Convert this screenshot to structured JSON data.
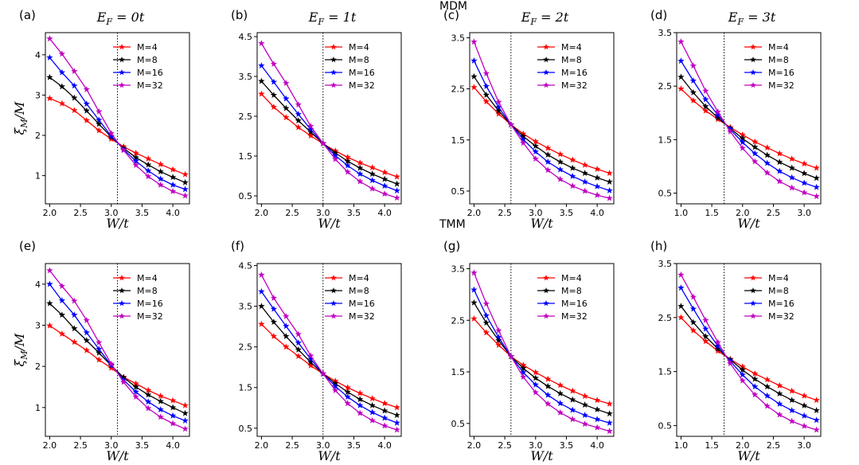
{
  "figure": {
    "section_labels": [
      "MDM",
      "TMM"
    ],
    "column_titles": [
      "E_F = 0t",
      "E_F = 1t",
      "E_F = 2t",
      "E_F = 3t"
    ],
    "xlabel": "W/t",
    "ylabel": "ξ_M/M",
    "legend_entries": [
      "M=4",
      "M=8",
      "M=16",
      "M=32"
    ],
    "colors": {
      "M4": "#ff0000",
      "M8": "#000000",
      "M16": "#0000ff",
      "M32": "#c000c0",
      "critical_line": "#000000"
    }
  },
  "chart_data": [
    {
      "panel": "(a)",
      "type": "line",
      "title": "E_F = 0t",
      "xlabel": "W/t",
      "ylabel": "ξ_M/M",
      "xlim": [
        1.93,
        4.27
      ],
      "ylim": [
        0.3,
        4.55
      ],
      "xticks": [
        "2.0",
        "2.5",
        "3.0",
        "3.5",
        "4.0"
      ],
      "yticks": [
        "1",
        "2",
        "3",
        "4"
      ],
      "xtick_values": [
        2.0,
        2.5,
        3.0,
        3.5,
        4.0
      ],
      "ytick_values": [
        1,
        2,
        3,
        4
      ],
      "critical_W": 3.1,
      "x": [
        2.0,
        2.2,
        2.4,
        2.6,
        2.8,
        3.0,
        3.2,
        3.4,
        3.6,
        3.8,
        4.0,
        4.2
      ],
      "series": [
        {
          "name": "M=4",
          "values": [
            2.92,
            2.79,
            2.62,
            2.37,
            2.12,
            1.91,
            1.72,
            1.56,
            1.42,
            1.28,
            1.15,
            1.03
          ]
        },
        {
          "name": "M=8",
          "values": [
            3.44,
            3.21,
            2.93,
            2.61,
            2.28,
            1.96,
            1.68,
            1.45,
            1.27,
            1.1,
            0.96,
            0.83
          ]
        },
        {
          "name": "M=16",
          "values": [
            3.93,
            3.56,
            3.23,
            2.78,
            2.38,
            1.98,
            1.65,
            1.36,
            1.12,
            0.92,
            0.77,
            0.66
          ]
        },
        {
          "name": "M=32",
          "values": [
            4.4,
            4.02,
            3.59,
            3.14,
            2.59,
            2.05,
            1.63,
            1.26,
            0.98,
            0.77,
            0.61,
            0.5
          ]
        }
      ]
    },
    {
      "panel": "(b)",
      "type": "line",
      "title": "E_F = 1t",
      "xlabel": "W/t",
      "ylabel": "",
      "xlim": [
        1.93,
        4.27
      ],
      "ylim": [
        0.3,
        4.6
      ],
      "xticks": [
        "2.0",
        "2.5",
        "3.0",
        "3.5",
        "4.0"
      ],
      "yticks": [
        "0.5",
        "1.5",
        "2.5",
        "3.5",
        "4.5"
      ],
      "xtick_values": [
        2.0,
        2.5,
        3.0,
        3.5,
        4.0
      ],
      "ytick_values": [
        0.5,
        1.5,
        2.5,
        3.5,
        4.5
      ],
      "critical_W": 3.0,
      "x": [
        2.0,
        2.2,
        2.4,
        2.6,
        2.8,
        3.0,
        3.2,
        3.4,
        3.6,
        3.8,
        4.0,
        4.2
      ],
      "series": [
        {
          "name": "M=4",
          "values": [
            3.06,
            2.73,
            2.47,
            2.22,
            2.01,
            1.81,
            1.63,
            1.47,
            1.33,
            1.21,
            1.09,
            0.98
          ]
        },
        {
          "name": "M=8",
          "values": [
            3.38,
            3.03,
            2.7,
            2.39,
            2.1,
            1.82,
            1.58,
            1.37,
            1.2,
            1.05,
            0.92,
            0.8
          ]
        },
        {
          "name": "M=16",
          "values": [
            3.77,
            3.36,
            2.94,
            2.55,
            2.17,
            1.82,
            1.51,
            1.26,
            1.05,
            0.89,
            0.75,
            0.63
          ]
        },
        {
          "name": "M=32",
          "values": [
            4.33,
            3.81,
            3.33,
            2.79,
            2.25,
            1.82,
            1.42,
            1.1,
            0.86,
            0.68,
            0.55,
            0.45
          ]
        }
      ]
    },
    {
      "panel": "(c)",
      "type": "line",
      "title": "E_F = 2t",
      "xlabel": "W/t",
      "ylabel": "",
      "xlim": [
        1.93,
        4.27
      ],
      "ylim": [
        0.25,
        3.6
      ],
      "xticks": [
        "2.0",
        "2.5",
        "3.0",
        "3.5",
        "4.0"
      ],
      "yticks": [
        "0.5",
        "1.5",
        "2.5",
        "3.5"
      ],
      "xtick_values": [
        2.0,
        2.5,
        3.0,
        3.5,
        4.0
      ],
      "ytick_values": [
        0.5,
        1.5,
        2.5,
        3.5
      ],
      "critical_W": 2.6,
      "x": [
        2.0,
        2.2,
        2.4,
        2.6,
        2.8,
        3.0,
        3.2,
        3.4,
        3.6,
        3.8,
        4.0,
        4.2
      ],
      "series": [
        {
          "name": "M=4",
          "values": [
            2.53,
            2.25,
            2.01,
            1.8,
            1.62,
            1.47,
            1.34,
            1.22,
            1.11,
            1.01,
            0.93,
            0.85
          ]
        },
        {
          "name": "M=8",
          "values": [
            2.74,
            2.38,
            2.07,
            1.8,
            1.57,
            1.38,
            1.21,
            1.07,
            0.95,
            0.85,
            0.76,
            0.68
          ]
        },
        {
          "name": "M=16",
          "values": [
            3.05,
            2.55,
            2.14,
            1.8,
            1.51,
            1.27,
            1.07,
            0.92,
            0.79,
            0.68,
            0.59,
            0.51
          ]
        },
        {
          "name": "M=32",
          "values": [
            3.42,
            2.8,
            2.24,
            1.8,
            1.44,
            1.13,
            0.91,
            0.73,
            0.6,
            0.5,
            0.42,
            0.36
          ]
        }
      ]
    },
    {
      "panel": "(d)",
      "type": "line",
      "title": "E_F = 3t",
      "xlabel": "W/t",
      "ylabel": "",
      "xlim": [
        0.93,
        3.27
      ],
      "ylim": [
        0.3,
        3.5
      ],
      "xticks": [
        "1.0",
        "1.5",
        "2.0",
        "2.5",
        "3.0"
      ],
      "yticks": [
        "0.5",
        "1.5",
        "2.5",
        "3.5"
      ],
      "xtick_values": [
        1.0,
        1.5,
        2.0,
        2.5,
        3.0
      ],
      "ytick_values": [
        0.5,
        1.5,
        2.5,
        3.5
      ],
      "critical_W": 1.7,
      "x": [
        1.0,
        1.2,
        1.4,
        1.6,
        1.8,
        2.0,
        2.2,
        2.4,
        2.6,
        2.8,
        3.0,
        3.2
      ],
      "series": [
        {
          "name": "M=4",
          "values": [
            2.45,
            2.23,
            2.04,
            1.88,
            1.73,
            1.59,
            1.46,
            1.35,
            1.24,
            1.14,
            1.05,
            0.97
          ]
        },
        {
          "name": "M=8",
          "values": [
            2.67,
            2.38,
            2.12,
            1.91,
            1.71,
            1.52,
            1.36,
            1.21,
            1.08,
            0.97,
            0.87,
            0.78
          ]
        },
        {
          "name": "M=16",
          "values": [
            2.97,
            2.6,
            2.25,
            1.96,
            1.69,
            1.45,
            1.24,
            1.06,
            0.91,
            0.79,
            0.69,
            0.61
          ]
        },
        {
          "name": "M=32",
          "values": [
            3.33,
            2.88,
            2.41,
            2.02,
            1.65,
            1.34,
            1.09,
            0.88,
            0.72,
            0.6,
            0.51,
            0.44
          ]
        }
      ]
    },
    {
      "panel": "(e)",
      "type": "line",
      "title": "",
      "xlabel": "W/t",
      "ylabel": "ξ_M/M",
      "xlim": [
        1.93,
        4.27
      ],
      "ylim": [
        0.3,
        4.5
      ],
      "xticks": [
        "2.0",
        "2.5",
        "3.0",
        "3.5",
        "4.0"
      ],
      "yticks": [
        "1",
        "2",
        "3",
        "4"
      ],
      "xtick_values": [
        2.0,
        2.5,
        3.0,
        3.5,
        4.0
      ],
      "ytick_values": [
        1,
        2,
        3,
        4
      ],
      "critical_W": 3.1,
      "x": [
        2.0,
        2.2,
        2.4,
        2.6,
        2.8,
        3.0,
        3.2,
        3.4,
        3.6,
        3.8,
        4.0,
        4.2
      ],
      "series": [
        {
          "name": "M=4",
          "values": [
            2.99,
            2.79,
            2.59,
            2.39,
            2.16,
            1.96,
            1.74,
            1.58,
            1.42,
            1.28,
            1.17,
            1.05
          ]
        },
        {
          "name": "M=8",
          "values": [
            3.53,
            3.25,
            2.92,
            2.63,
            2.33,
            2.02,
            1.73,
            1.5,
            1.31,
            1.15,
            1.0,
            0.86
          ]
        },
        {
          "name": "M=16",
          "values": [
            4.0,
            3.6,
            3.25,
            2.82,
            2.42,
            2.03,
            1.67,
            1.38,
            1.14,
            0.95,
            0.8,
            0.68
          ]
        },
        {
          "name": "M=32",
          "values": [
            4.33,
            3.95,
            3.59,
            3.12,
            2.58,
            2.06,
            1.62,
            1.26,
            0.98,
            0.77,
            0.61,
            0.48
          ]
        }
      ]
    },
    {
      "panel": "(f)",
      "type": "line",
      "title": "",
      "xlabel": "W/t",
      "ylabel": "",
      "xlim": [
        1.93,
        4.27
      ],
      "ylim": [
        0.3,
        4.55
      ],
      "xticks": [
        "2.0",
        "2.5",
        "3.0",
        "3.5",
        "4.0"
      ],
      "yticks": [
        "0.5",
        "1.5",
        "2.5",
        "3.5",
        "4.5"
      ],
      "xtick_values": [
        2.0,
        2.5,
        3.0,
        3.5,
        4.0
      ],
      "ytick_values": [
        0.5,
        1.5,
        2.5,
        3.5,
        4.5
      ],
      "critical_W": 3.0,
      "x": [
        2.0,
        2.2,
        2.4,
        2.6,
        2.8,
        3.0,
        3.2,
        3.4,
        3.6,
        3.8,
        4.0,
        4.2
      ],
      "series": [
        {
          "name": "M=4",
          "values": [
            3.06,
            2.76,
            2.5,
            2.27,
            2.04,
            1.84,
            1.66,
            1.5,
            1.36,
            1.23,
            1.11,
            1.01
          ]
        },
        {
          "name": "M=8",
          "values": [
            3.5,
            3.11,
            2.76,
            2.43,
            2.12,
            1.84,
            1.6,
            1.39,
            1.21,
            1.06,
            0.93,
            0.82
          ]
        },
        {
          "name": "M=16",
          "values": [
            3.86,
            3.43,
            3.01,
            2.6,
            2.2,
            1.84,
            1.53,
            1.27,
            1.06,
            0.89,
            0.75,
            0.63
          ]
        },
        {
          "name": "M=32",
          "values": [
            4.27,
            3.7,
            3.25,
            2.81,
            2.28,
            1.84,
            1.43,
            1.11,
            0.87,
            0.69,
            0.56,
            0.46
          ]
        }
      ]
    },
    {
      "panel": "(g)",
      "type": "line",
      "title": "",
      "xlabel": "W/t",
      "ylabel": "",
      "xlim": [
        1.93,
        4.27
      ],
      "ylim": [
        0.25,
        3.6
      ],
      "xticks": [
        "2.0",
        "2.5",
        "3.0",
        "3.5",
        "4.0"
      ],
      "yticks": [
        "0.5",
        "1.5",
        "2.5",
        "3.5"
      ],
      "xtick_values": [
        2.0,
        2.5,
        3.0,
        3.5,
        4.0
      ],
      "ytick_values": [
        0.5,
        1.5,
        2.5,
        3.5
      ],
      "critical_W": 2.6,
      "x": [
        2.0,
        2.2,
        2.4,
        2.6,
        2.8,
        3.0,
        3.2,
        3.4,
        3.6,
        3.8,
        4.0,
        4.2
      ],
      "series": [
        {
          "name": "M=4",
          "values": [
            2.53,
            2.26,
            2.02,
            1.8,
            1.63,
            1.49,
            1.36,
            1.24,
            1.13,
            1.03,
            0.95,
            0.88
          ]
        },
        {
          "name": "M=8",
          "values": [
            2.84,
            2.45,
            2.11,
            1.8,
            1.57,
            1.38,
            1.22,
            1.08,
            0.96,
            0.86,
            0.77,
            0.69
          ]
        },
        {
          "name": "M=16",
          "values": [
            3.09,
            2.59,
            2.17,
            1.8,
            1.49,
            1.25,
            1.05,
            0.89,
            0.76,
            0.66,
            0.58,
            0.51
          ]
        },
        {
          "name": "M=32",
          "values": [
            3.42,
            2.82,
            2.3,
            1.8,
            1.4,
            1.1,
            0.88,
            0.71,
            0.58,
            0.49,
            0.42,
            0.35
          ]
        }
      ]
    },
    {
      "panel": "(h)",
      "type": "line",
      "title": "",
      "xlabel": "W/t",
      "ylabel": "",
      "xlim": [
        0.93,
        3.27
      ],
      "ylim": [
        0.3,
        3.5
      ],
      "xticks": [
        "1.0",
        "1.5",
        "2.0",
        "2.5",
        "3.0"
      ],
      "yticks": [
        "0.5",
        "1.5",
        "2.5",
        "3.5"
      ],
      "xtick_values": [
        1.0,
        1.5,
        2.0,
        2.5,
        3.0
      ],
      "ytick_values": [
        0.5,
        1.5,
        2.5,
        3.5
      ],
      "critical_W": 1.7,
      "x": [
        1.0,
        1.2,
        1.4,
        1.6,
        1.8,
        2.0,
        2.2,
        2.4,
        2.6,
        2.8,
        3.0,
        3.2
      ],
      "series": [
        {
          "name": "M=4",
          "values": [
            2.5,
            2.26,
            2.06,
            1.88,
            1.73,
            1.59,
            1.46,
            1.35,
            1.24,
            1.14,
            1.05,
            0.97
          ]
        },
        {
          "name": "M=8",
          "values": [
            2.71,
            2.41,
            2.15,
            1.92,
            1.72,
            1.53,
            1.36,
            1.22,
            1.09,
            0.97,
            0.87,
            0.78
          ]
        },
        {
          "name": "M=16",
          "values": [
            3.05,
            2.66,
            2.29,
            1.97,
            1.69,
            1.44,
            1.22,
            1.05,
            0.9,
            0.78,
            0.68,
            0.6
          ]
        },
        {
          "name": "M=32",
          "values": [
            3.29,
            2.88,
            2.45,
            2.04,
            1.65,
            1.33,
            1.07,
            0.86,
            0.7,
            0.58,
            0.49,
            0.42
          ]
        }
      ]
    }
  ]
}
